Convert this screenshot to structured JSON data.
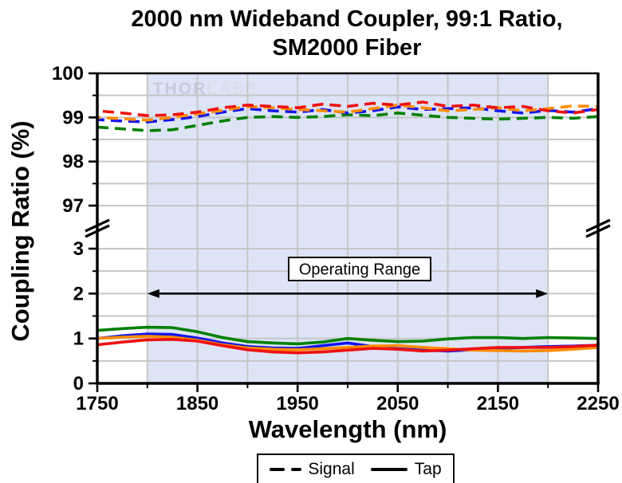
{
  "title": {
    "line1": "2000 nm Wideband Coupler, 99:1 Ratio,",
    "line2": "SM2000 Fiber"
  },
  "axes": {
    "x_label": "Wavelength (nm)",
    "y_label": "Coupling Ratio (%)"
  },
  "watermark": {
    "part1": "THOR",
    "part2": "LABS"
  },
  "legend": {
    "signal_label": "Signal",
    "tap_label": "Tap"
  },
  "annotation": {
    "operating_range_label": "Operating Range"
  },
  "colors": {
    "red": "#ee1111",
    "orange": "#ff8c00",
    "blue": "#1414ee",
    "green": "#008000",
    "band": "#dde4f5",
    "grid": "#c6c6c6",
    "axis": "#000000",
    "watermark_dark": "#c6cbdb",
    "watermark_light": "#dadeeb"
  },
  "chart_data": {
    "type": "line",
    "title": "2000 nm Wideband Coupler, 99:1 Ratio, SM2000 Fiber",
    "xlabel": "Wavelength (nm)",
    "ylabel": "Coupling Ratio (%)",
    "xlim": [
      1750,
      2250
    ],
    "x_ticks": [
      1750,
      1850,
      1950,
      2050,
      2150,
      2250
    ],
    "x_minor_ticks": [
      1800,
      1900,
      2000,
      2100,
      2200
    ],
    "y_axis_break": {
      "top_range": [
        96.6,
        100
      ],
      "bottom_range": [
        0,
        3.3
      ]
    },
    "y_ticks_top": [
      100,
      99,
      98,
      97
    ],
    "y_minor_ticks_top": [
      99.5,
      98.5,
      97.5
    ],
    "y_ticks_bottom": [
      3,
      2,
      1,
      0
    ],
    "y_minor_ticks_bottom": [
      2.5,
      1.5,
      0.5
    ],
    "grid": true,
    "legend_position": "bottom-center",
    "shaded_band_x": [
      1800,
      2200
    ],
    "operating_range_arrow": {
      "x_start": 1800,
      "x_end": 2200,
      "y_level": 2
    },
    "x": [
      1750,
      1775,
      1800,
      1825,
      1850,
      1875,
      1900,
      1925,
      1950,
      1975,
      2000,
      2025,
      2050,
      2075,
      2100,
      2125,
      2150,
      2175,
      2200,
      2225,
      2250
    ],
    "series": [
      {
        "name": "signal-green",
        "group": "Signal",
        "style": "dashed",
        "color": "#008000",
        "values": [
          98.78,
          98.74,
          98.7,
          98.72,
          98.82,
          98.92,
          99.0,
          99.02,
          99.0,
          99.02,
          99.06,
          99.04,
          99.1,
          99.05,
          99.0,
          98.98,
          98.96,
          98.98,
          99.0,
          98.98,
          99.02
        ]
      },
      {
        "name": "signal-blue",
        "group": "Signal",
        "style": "dashed",
        "color": "#1414ee",
        "values": [
          98.95,
          98.92,
          98.9,
          98.95,
          99.02,
          99.12,
          99.2,
          99.15,
          99.12,
          99.18,
          99.1,
          99.15,
          99.24,
          99.18,
          99.2,
          99.22,
          99.15,
          99.1,
          99.16,
          99.12,
          99.2
        ]
      },
      {
        "name": "signal-orange",
        "group": "Signal",
        "style": "dashed",
        "color": "#ff8c00",
        "values": [
          99.0,
          98.97,
          98.94,
          99.0,
          99.08,
          99.16,
          99.25,
          99.22,
          99.18,
          99.15,
          99.12,
          99.2,
          99.28,
          99.22,
          99.15,
          99.18,
          99.22,
          99.15,
          99.2,
          99.26,
          99.25
        ]
      },
      {
        "name": "signal-red",
        "group": "Signal",
        "style": "dashed",
        "color": "#ee1111",
        "values": [
          99.15,
          99.1,
          99.04,
          99.06,
          99.12,
          99.22,
          99.28,
          99.25,
          99.22,
          99.3,
          99.25,
          99.32,
          99.28,
          99.35,
          99.25,
          99.28,
          99.22,
          99.25,
          99.15,
          99.1,
          99.18
        ]
      },
      {
        "name": "tap-green",
        "group": "Tap",
        "style": "solid",
        "color": "#008000",
        "values": [
          1.18,
          1.22,
          1.25,
          1.24,
          1.15,
          1.02,
          0.93,
          0.9,
          0.88,
          0.92,
          1.0,
          0.96,
          0.93,
          0.94,
          0.99,
          1.02,
          1.02,
          1.0,
          1.02,
          1.01,
          1.0
        ]
      },
      {
        "name": "tap-blue",
        "group": "Tap",
        "style": "solid",
        "color": "#1414ee",
        "values": [
          1.0,
          1.06,
          1.1,
          1.09,
          1.01,
          0.9,
          0.82,
          0.79,
          0.78,
          0.84,
          0.9,
          0.82,
          0.77,
          0.74,
          0.72,
          0.75,
          0.78,
          0.8,
          0.82,
          0.83,
          0.85
        ]
      },
      {
        "name": "tap-orange",
        "group": "Tap",
        "style": "solid",
        "color": "#ff8c00",
        "values": [
          1.0,
          1.03,
          1.05,
          1.03,
          0.96,
          0.86,
          0.79,
          0.76,
          0.75,
          0.77,
          0.8,
          0.83,
          0.84,
          0.8,
          0.77,
          0.74,
          0.73,
          0.72,
          0.73,
          0.76,
          0.8
        ]
      },
      {
        "name": "tap-red",
        "group": "Tap",
        "style": "solid",
        "color": "#ee1111",
        "values": [
          0.86,
          0.92,
          0.97,
          0.98,
          0.94,
          0.84,
          0.75,
          0.7,
          0.68,
          0.7,
          0.74,
          0.78,
          0.76,
          0.72,
          0.74,
          0.77,
          0.8,
          0.8,
          0.8,
          0.82,
          0.85
        ]
      }
    ]
  }
}
